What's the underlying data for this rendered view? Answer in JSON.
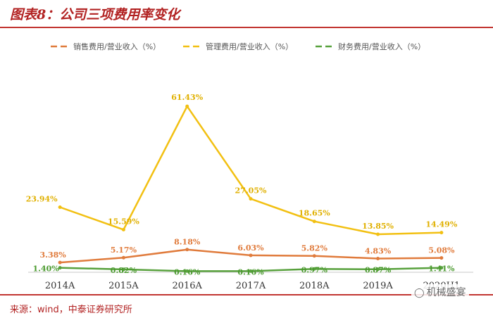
{
  "header": {
    "title": "图表8：公司三项费用率变化"
  },
  "footer": {
    "source": "来源：wind，中泰证券研究所"
  },
  "watermark": {
    "icon": "wechat-icon",
    "text": "机械盛宴"
  },
  "colors": {
    "accent": "#b22222",
    "rule": "#c23531"
  },
  "chart_data": {
    "type": "line",
    "categories": [
      "2014A",
      "2015A",
      "2016A",
      "2017A",
      "2018A",
      "2019A",
      "2020H1"
    ],
    "series": [
      {
        "name": "销售费用/营业收入（%）",
        "color": "#e07b3c",
        "values": [
          3.38,
          5.17,
          8.18,
          6.03,
          5.82,
          4.83,
          5.08
        ],
        "labels": [
          "3.38%",
          "5.17%",
          "8.18%",
          "6.03%",
          "5.82%",
          "4.83%",
          "5.08%"
        ]
      },
      {
        "name": "管理费用/营业收入（%）",
        "color": "#f2c012",
        "values": [
          23.94,
          15.59,
          61.43,
          27.05,
          18.65,
          13.85,
          14.49
        ],
        "labels": [
          "23.94%",
          "15.59%",
          "61.43%",
          "27.05%",
          "18.65%",
          "13.85%",
          "14.49%"
        ]
      },
      {
        "name": "财务费用/营业收入（%）",
        "color": "#58a13d",
        "values": [
          1.4,
          0.82,
          0.16,
          0.16,
          0.97,
          0.87,
          1.41
        ],
        "labels": [
          "1.40%",
          "0.82%",
          "0.16%",
          "0.16%",
          "0.97%",
          "0.87%",
          "1.41%"
        ]
      }
    ],
    "legend": "top",
    "grid": false,
    "ylim": [
      0,
      68
    ]
  }
}
